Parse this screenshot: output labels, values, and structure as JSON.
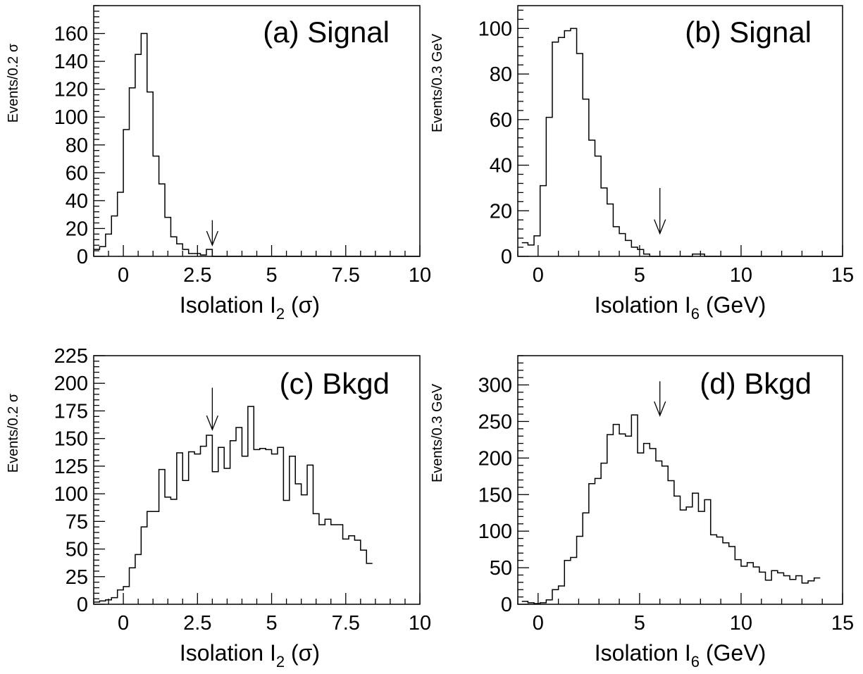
{
  "chart_data": [
    {
      "type": "histogram",
      "title": "(a) Signal",
      "xlabel": {
        "prefix": "Isolation I",
        "sub": "2",
        "suffix": " (σ)"
      },
      "ylabel": "Events/0.2 σ",
      "xlim": [
        -1,
        10
      ],
      "ylim": [
        0,
        180
      ],
      "xticks": [
        0,
        2.5,
        5,
        7.5,
        10
      ],
      "xtick_labels": [
        "0",
        "2.5",
        "5",
        "7.5",
        "10"
      ],
      "yticks": [
        0,
        20,
        40,
        60,
        80,
        100,
        120,
        140,
        160
      ],
      "ytick_labels": [
        "0",
        "20",
        "40",
        "60",
        "80",
        "100",
        "120",
        "140",
        "160"
      ],
      "bin_start": -1,
      "bin_width": 0.2,
      "values": [
        5,
        7,
        16,
        29,
        46,
        91,
        121,
        145,
        160,
        118,
        72,
        52,
        28,
        14,
        9,
        5,
        2,
        2,
        1,
        5,
        0,
        0,
        0,
        0,
        0,
        0,
        0,
        0,
        0,
        0,
        0,
        0,
        0,
        0,
        0,
        0,
        0,
        0,
        0,
        0,
        0,
        0,
        0,
        0,
        0,
        0,
        0,
        0,
        0,
        0,
        0,
        0,
        0,
        0,
        0
      ],
      "arrow_x": 3.0,
      "arrow_y": [
        26,
        8
      ]
    },
    {
      "type": "histogram",
      "title": "(b) Signal",
      "xlabel": {
        "prefix": "Isolation I",
        "sub": "6",
        "suffix": " (GeV)"
      },
      "ylabel": "Events/0.3 GeV",
      "xlim": [
        -1,
        15
      ],
      "ylim": [
        0,
        110
      ],
      "xticks": [
        0,
        5,
        10,
        15
      ],
      "xtick_labels": [
        "0",
        "5",
        "10",
        "15"
      ],
      "yticks": [
        0,
        20,
        40,
        60,
        80,
        100
      ],
      "ytick_labels": [
        "0",
        "20",
        "40",
        "60",
        "80",
        "100"
      ],
      "bin_start": -0.8,
      "bin_width": 0.3,
      "values": [
        6,
        5,
        9,
        31,
        61,
        94,
        96,
        99,
        100,
        89,
        69,
        51,
        44,
        30,
        23,
        13,
        10,
        7,
        4,
        3,
        1,
        0,
        0,
        0,
        0,
        0,
        0,
        0,
        1,
        1,
        0,
        0,
        0,
        0,
        0,
        0,
        0,
        0,
        0,
        0,
        0,
        0,
        0,
        0,
        0,
        0,
        0,
        0,
        0,
        0,
        0,
        0,
        0
      ],
      "arrow_x": 6.0,
      "arrow_y": [
        30,
        10
      ]
    },
    {
      "type": "histogram",
      "title": "(c) Bkgd",
      "xlabel": {
        "prefix": "Isolation I",
        "sub": "2",
        "suffix": " (σ)"
      },
      "ylabel": "Events/0.2 σ",
      "xlim": [
        -1,
        10
      ],
      "ylim": [
        0,
        225
      ],
      "xticks": [
        0,
        2.5,
        5,
        7.5,
        10
      ],
      "xtick_labels": [
        "0",
        "2.5",
        "5",
        "7.5",
        "10"
      ],
      "yticks": [
        0,
        25,
        50,
        75,
        100,
        125,
        150,
        175,
        200,
        225
      ],
      "ytick_labels": [
        "0",
        "25",
        "50",
        "75",
        "100",
        "125",
        "150",
        "175",
        "200",
        "225"
      ],
      "bin_start": -1,
      "bin_width": 0.2,
      "values": [
        2,
        3,
        4,
        6,
        13,
        16,
        33,
        45,
        70,
        84,
        84,
        122,
        97,
        95,
        137,
        112,
        138,
        136,
        143,
        153,
        120,
        142,
        123,
        148,
        160,
        134,
        179,
        140,
        141,
        140,
        136,
        142,
        94,
        134,
        109,
        99,
        126,
        82,
        72,
        77,
        72,
        72,
        59,
        62,
        58,
        49,
        37
      ],
      "arrow_x": 3.0,
      "arrow_y": [
        196,
        158
      ]
    },
    {
      "type": "histogram",
      "title": "(d) Bkgd",
      "xlabel": {
        "prefix": "Isolation I",
        "sub": "6",
        "suffix": " (GeV)"
      },
      "ylabel": "Events/0.3 GeV",
      "xlim": [
        -1,
        15
      ],
      "ylim": [
        0,
        340
      ],
      "xticks": [
        0,
        5,
        10,
        15
      ],
      "xtick_labels": [
        "0",
        "5",
        "10",
        "15"
      ],
      "yticks": [
        0,
        50,
        100,
        150,
        200,
        250,
        300
      ],
      "ytick_labels": [
        "0",
        "50",
        "100",
        "150",
        "200",
        "250",
        "300"
      ],
      "bin_start": -0.8,
      "bin_width": 0.3,
      "values": [
        4,
        2,
        1,
        2,
        6,
        20,
        25,
        60,
        64,
        93,
        125,
        165,
        172,
        193,
        232,
        246,
        233,
        230,
        259,
        207,
        220,
        213,
        196,
        189,
        169,
        148,
        129,
        133,
        152,
        127,
        143,
        95,
        92,
        84,
        79,
        61,
        52,
        57,
        51,
        44,
        33,
        46,
        43,
        39,
        34,
        39,
        29,
        32,
        36
      ],
      "arrow_x": 6.0,
      "arrow_y": [
        305,
        258
      ]
    }
  ]
}
